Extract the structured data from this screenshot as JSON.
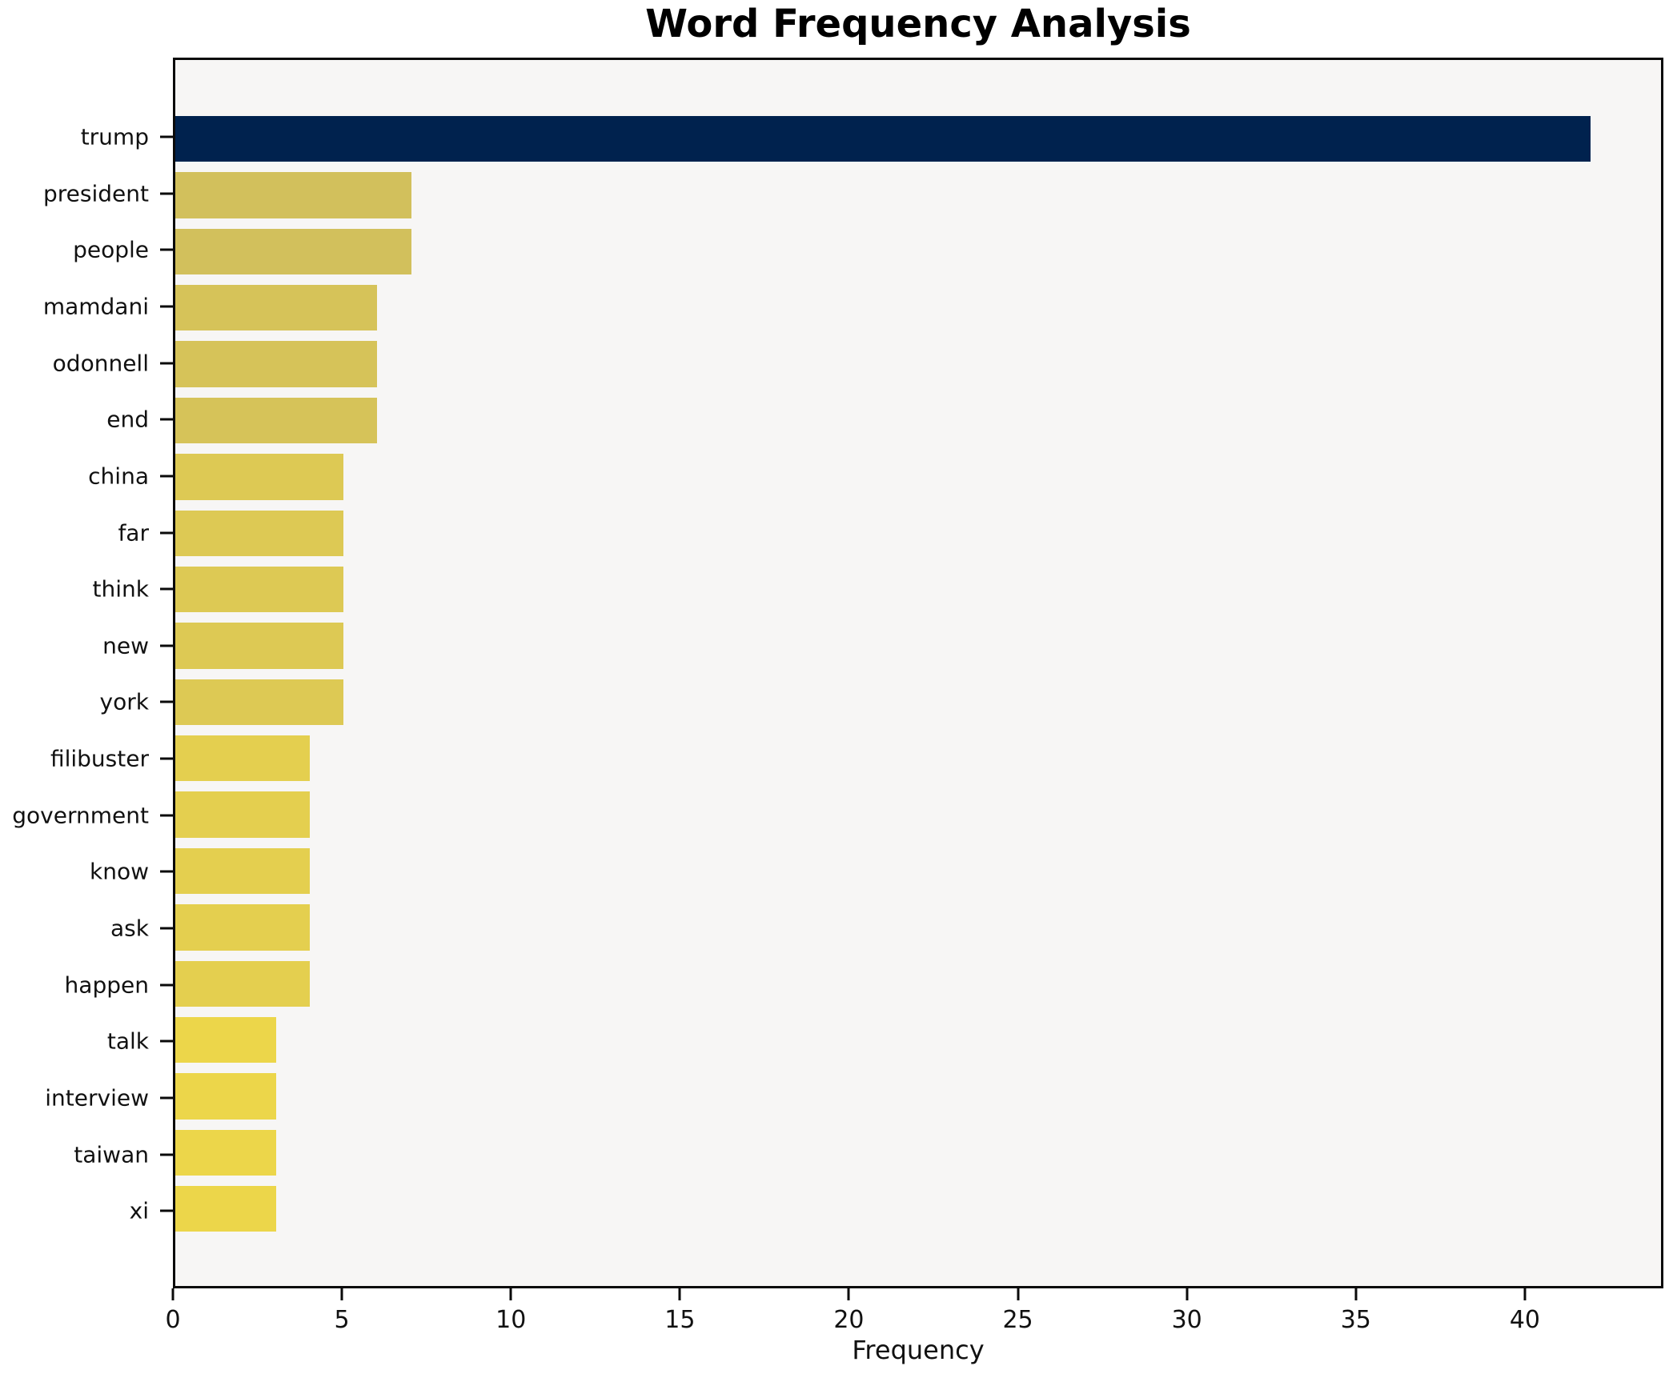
{
  "chart_data": {
    "type": "bar",
    "orientation": "horizontal",
    "title": "Word Frequency Analysis",
    "xlabel": "Frequency",
    "ylabel": "",
    "categories": [
      "trump",
      "president",
      "people",
      "mamdani",
      "odonnell",
      "end",
      "china",
      "far",
      "think",
      "new",
      "york",
      "filibuster",
      "government",
      "know",
      "ask",
      "happen",
      "talk",
      "interview",
      "taiwan",
      "xi"
    ],
    "values": [
      42,
      7,
      7,
      6,
      6,
      6,
      5,
      5,
      5,
      5,
      5,
      4,
      4,
      4,
      4,
      4,
      3,
      3,
      3,
      3
    ],
    "bar_colors": [
      "#00224e",
      "#d2c05c",
      "#d2c05c",
      "#d6c359",
      "#d6c359",
      "#d6c359",
      "#ddc954",
      "#ddc954",
      "#ddc954",
      "#ddc954",
      "#ddc954",
      "#e4cf4f",
      "#e4cf4f",
      "#e4cf4f",
      "#e4cf4f",
      "#e4cf4f",
      "#ecd64a",
      "#ecd64a",
      "#ecd64a",
      "#ecd64a"
    ],
    "x_ticks": [
      0,
      5,
      10,
      15,
      20,
      25,
      30,
      35,
      40
    ],
    "xlim": [
      0,
      44.1
    ],
    "grid": "off",
    "legend": "none",
    "plot_background": "#f7f6f5",
    "figure_background": "#ffffff",
    "accent_color_max_bar": "#00224e"
  }
}
